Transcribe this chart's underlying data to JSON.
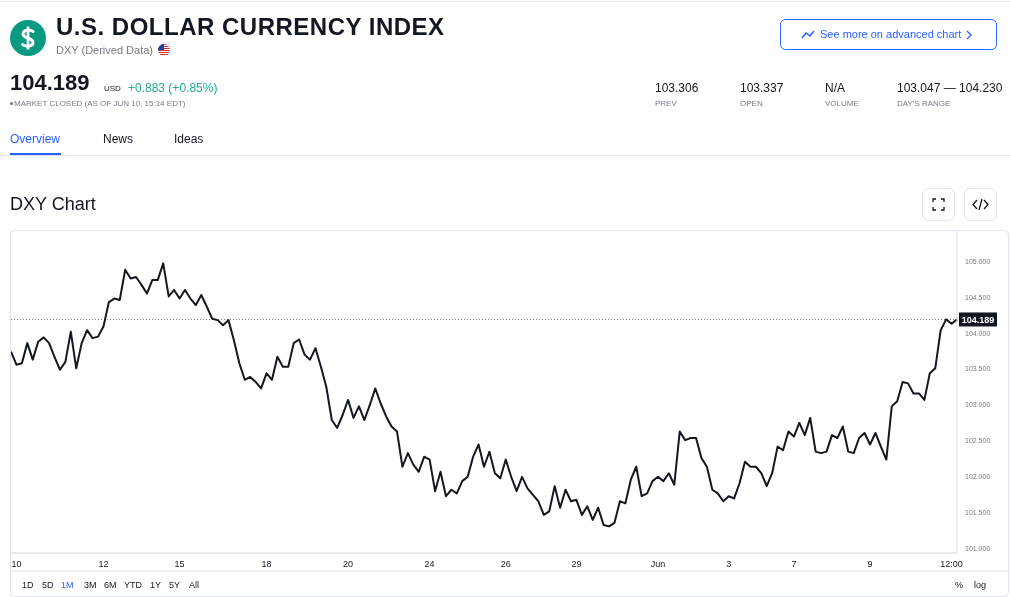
{
  "chart_data": {
    "type": "line",
    "title": "U.S. DOLLAR CURRENCY INDEX",
    "subtitle": "DXY (Derived Data)",
    "annotations": [
      "104.189",
      "USD",
      "+0.883 (+0.85%)",
      "MARKET CLOSED (AS OF JUN 10, 15:14 EDT)",
      "103.306",
      "PREV",
      "103.337",
      "OPEN",
      "N/A",
      "VOLUME",
      "103.047 — 104.230",
      "DAY'S RANGE",
      "Overview",
      "News",
      "Ideas",
      "See more on advanced chart",
      "DXY Chart",
      "1D",
      "5D",
      "1M",
      "3M",
      "6M",
      "YTD",
      "1Y",
      "5Y",
      "All",
      "%",
      "log"
    ],
    "categories": [
      null,
      "10",
      null,
      null,
      null,
      null,
      null,
      null,
      null,
      null,
      null,
      null,
      null,
      null,
      null,
      null,
      null,
      "12",
      null,
      null,
      null,
      null,
      null,
      null,
      null,
      null,
      null,
      null,
      null,
      null,
      null,
      "15",
      null,
      null,
      null,
      null,
      null,
      null,
      null,
      null,
      null,
      null,
      null,
      null,
      null,
      null,
      null,
      "18",
      null,
      null,
      null,
      null,
      null,
      null,
      null,
      null,
      null,
      null,
      null,
      null,
      null,
      null,
      "20",
      null,
      null,
      null,
      null,
      null,
      null,
      null,
      null,
      null,
      null,
      null,
      null,
      null,
      null,
      "24",
      null,
      null,
      null,
      null,
      null,
      null,
      null,
      null,
      null,
      null,
      null,
      null,
      null,
      "26",
      null,
      null,
      null,
      null,
      null,
      null,
      null,
      null,
      null,
      null,
      null,
      null,
      "29",
      null,
      null,
      null,
      null,
      null,
      null,
      null,
      null,
      null,
      null,
      null,
      null,
      null,
      null,
      "Jun",
      null,
      null,
      null,
      null,
      null,
      null,
      null,
      null,
      null,
      null,
      null,
      null,
      "3",
      null,
      null,
      null,
      null,
      null,
      null,
      null,
      null,
      null,
      null,
      null,
      "7",
      null,
      null,
      null,
      null,
      null,
      null,
      null,
      null,
      null,
      null,
      null,
      null,
      null,
      "9",
      null,
      null,
      null,
      null,
      null,
      null,
      null,
      null,
      null,
      null,
      null,
      null,
      null,
      null,
      "12:00",
      null
    ],
    "series": [
      {
        "color": "#131722",
        "values": [
          103.74,
          103.56,
          103.58,
          103.86,
          103.63,
          103.88,
          103.94,
          103.86,
          103.67,
          103.49,
          103.6,
          104.02,
          103.51,
          103.86,
          104.04,
          103.93,
          103.95,
          104.09,
          104.43,
          104.48,
          104.46,
          104.88,
          104.76,
          104.78,
          104.67,
          104.55,
          104.74,
          104.74,
          104.97,
          104.51,
          104.6,
          104.48,
          104.6,
          104.48,
          104.39,
          104.53,
          104.37,
          104.2,
          104.18,
          104.11,
          104.18,
          103.9,
          103.58,
          103.35,
          103.39,
          103.32,
          103.23,
          103.44,
          103.35,
          103.67,
          103.53,
          103.53,
          103.86,
          103.91,
          103.7,
          103.63,
          103.79,
          103.53,
          103.25,
          102.79,
          102.68,
          102.86,
          103.07,
          102.82,
          102.98,
          102.79,
          103.0,
          103.23,
          103.02,
          102.84,
          102.7,
          102.63,
          102.14,
          102.33,
          102.17,
          102.07,
          102.28,
          102.24,
          101.8,
          102.07,
          101.73,
          101.82,
          101.77,
          101.94,
          102.0,
          102.28,
          102.45,
          102.14,
          102.35,
          102.05,
          101.98,
          102.24,
          102.0,
          101.8,
          102.0,
          101.84,
          101.75,
          101.66,
          101.47,
          101.52,
          101.87,
          101.57,
          101.82,
          101.66,
          101.68,
          101.47,
          101.59,
          101.4,
          101.57,
          101.33,
          101.31,
          101.36,
          101.66,
          101.63,
          101.96,
          102.14,
          101.73,
          101.77,
          101.94,
          102.0,
          101.94,
          102.05,
          101.89,
          102.63,
          102.51,
          102.54,
          102.54,
          102.26,
          102.14,
          101.82,
          101.77,
          101.66,
          101.73,
          101.7,
          101.91,
          102.21,
          102.14,
          102.14,
          102.05,
          101.87,
          102.05,
          102.42,
          102.37,
          102.63,
          102.56,
          102.75,
          102.58,
          102.82,
          102.35,
          102.33,
          102.35,
          102.58,
          102.54,
          102.7,
          102.35,
          102.33,
          102.54,
          102.61,
          102.45,
          102.61,
          102.42,
          102.24,
          102.98,
          103.05,
          103.32,
          103.3,
          103.16,
          103.16,
          103.07,
          103.44,
          103.51,
          104.04,
          104.19,
          104.13,
          104.19
        ]
      }
    ],
    "ylim": [
      100.94,
      105.42
    ],
    "yticks": [
      {
        "value": 101,
        "label": "101.000"
      },
      {
        "value": 101.5,
        "label": "101.500"
      },
      {
        "value": 102,
        "label": "102.000"
      },
      {
        "value": 102.5,
        "label": "102.500"
      },
      {
        "value": 103,
        "label": "103.000"
      },
      {
        "value": 103.5,
        "label": "103.500"
      },
      {
        "value": 104,
        "label": "104.000"
      },
      {
        "value": 104.5,
        "label": "104.500"
      },
      {
        "value": 105,
        "label": "105.000"
      }
    ],
    "ref_lines": [
      {
        "axis": "y",
        "value": 104.189,
        "label": "104.189",
        "color": "#787b86",
        "line_style": "dotted"
      }
    ],
    "line_style": "solid"
  }
}
